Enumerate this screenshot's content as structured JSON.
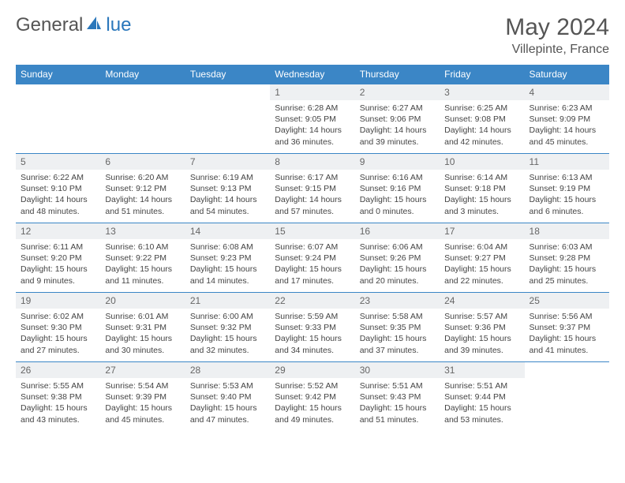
{
  "logo": {
    "part1": "General",
    "part2": "lue"
  },
  "title": "May 2024",
  "location": "Villepinte, France",
  "colors": {
    "header_bg": "#3b86c6",
    "header_text": "#ffffff",
    "border": "#3b86c6",
    "daynum_bg": "#eef0f2",
    "body_text": "#444444",
    "logo_blue": "#2a77bb"
  },
  "weekdays": [
    "Sunday",
    "Monday",
    "Tuesday",
    "Wednesday",
    "Thursday",
    "Friday",
    "Saturday"
  ],
  "weeks": [
    [
      {
        "n": "",
        "sr": "",
        "ss": "",
        "dl": ""
      },
      {
        "n": "",
        "sr": "",
        "ss": "",
        "dl": ""
      },
      {
        "n": "",
        "sr": "",
        "ss": "",
        "dl": ""
      },
      {
        "n": "1",
        "sr": "Sunrise: 6:28 AM",
        "ss": "Sunset: 9:05 PM",
        "dl": "Daylight: 14 hours and 36 minutes."
      },
      {
        "n": "2",
        "sr": "Sunrise: 6:27 AM",
        "ss": "Sunset: 9:06 PM",
        "dl": "Daylight: 14 hours and 39 minutes."
      },
      {
        "n": "3",
        "sr": "Sunrise: 6:25 AM",
        "ss": "Sunset: 9:08 PM",
        "dl": "Daylight: 14 hours and 42 minutes."
      },
      {
        "n": "4",
        "sr": "Sunrise: 6:23 AM",
        "ss": "Sunset: 9:09 PM",
        "dl": "Daylight: 14 hours and 45 minutes."
      }
    ],
    [
      {
        "n": "5",
        "sr": "Sunrise: 6:22 AM",
        "ss": "Sunset: 9:10 PM",
        "dl": "Daylight: 14 hours and 48 minutes."
      },
      {
        "n": "6",
        "sr": "Sunrise: 6:20 AM",
        "ss": "Sunset: 9:12 PM",
        "dl": "Daylight: 14 hours and 51 minutes."
      },
      {
        "n": "7",
        "sr": "Sunrise: 6:19 AM",
        "ss": "Sunset: 9:13 PM",
        "dl": "Daylight: 14 hours and 54 minutes."
      },
      {
        "n": "8",
        "sr": "Sunrise: 6:17 AM",
        "ss": "Sunset: 9:15 PM",
        "dl": "Daylight: 14 hours and 57 minutes."
      },
      {
        "n": "9",
        "sr": "Sunrise: 6:16 AM",
        "ss": "Sunset: 9:16 PM",
        "dl": "Daylight: 15 hours and 0 minutes."
      },
      {
        "n": "10",
        "sr": "Sunrise: 6:14 AM",
        "ss": "Sunset: 9:18 PM",
        "dl": "Daylight: 15 hours and 3 minutes."
      },
      {
        "n": "11",
        "sr": "Sunrise: 6:13 AM",
        "ss": "Sunset: 9:19 PM",
        "dl": "Daylight: 15 hours and 6 minutes."
      }
    ],
    [
      {
        "n": "12",
        "sr": "Sunrise: 6:11 AM",
        "ss": "Sunset: 9:20 PM",
        "dl": "Daylight: 15 hours and 9 minutes."
      },
      {
        "n": "13",
        "sr": "Sunrise: 6:10 AM",
        "ss": "Sunset: 9:22 PM",
        "dl": "Daylight: 15 hours and 11 minutes."
      },
      {
        "n": "14",
        "sr": "Sunrise: 6:08 AM",
        "ss": "Sunset: 9:23 PM",
        "dl": "Daylight: 15 hours and 14 minutes."
      },
      {
        "n": "15",
        "sr": "Sunrise: 6:07 AM",
        "ss": "Sunset: 9:24 PM",
        "dl": "Daylight: 15 hours and 17 minutes."
      },
      {
        "n": "16",
        "sr": "Sunrise: 6:06 AM",
        "ss": "Sunset: 9:26 PM",
        "dl": "Daylight: 15 hours and 20 minutes."
      },
      {
        "n": "17",
        "sr": "Sunrise: 6:04 AM",
        "ss": "Sunset: 9:27 PM",
        "dl": "Daylight: 15 hours and 22 minutes."
      },
      {
        "n": "18",
        "sr": "Sunrise: 6:03 AM",
        "ss": "Sunset: 9:28 PM",
        "dl": "Daylight: 15 hours and 25 minutes."
      }
    ],
    [
      {
        "n": "19",
        "sr": "Sunrise: 6:02 AM",
        "ss": "Sunset: 9:30 PM",
        "dl": "Daylight: 15 hours and 27 minutes."
      },
      {
        "n": "20",
        "sr": "Sunrise: 6:01 AM",
        "ss": "Sunset: 9:31 PM",
        "dl": "Daylight: 15 hours and 30 minutes."
      },
      {
        "n": "21",
        "sr": "Sunrise: 6:00 AM",
        "ss": "Sunset: 9:32 PM",
        "dl": "Daylight: 15 hours and 32 minutes."
      },
      {
        "n": "22",
        "sr": "Sunrise: 5:59 AM",
        "ss": "Sunset: 9:33 PM",
        "dl": "Daylight: 15 hours and 34 minutes."
      },
      {
        "n": "23",
        "sr": "Sunrise: 5:58 AM",
        "ss": "Sunset: 9:35 PM",
        "dl": "Daylight: 15 hours and 37 minutes."
      },
      {
        "n": "24",
        "sr": "Sunrise: 5:57 AM",
        "ss": "Sunset: 9:36 PM",
        "dl": "Daylight: 15 hours and 39 minutes."
      },
      {
        "n": "25",
        "sr": "Sunrise: 5:56 AM",
        "ss": "Sunset: 9:37 PM",
        "dl": "Daylight: 15 hours and 41 minutes."
      }
    ],
    [
      {
        "n": "26",
        "sr": "Sunrise: 5:55 AM",
        "ss": "Sunset: 9:38 PM",
        "dl": "Daylight: 15 hours and 43 minutes."
      },
      {
        "n": "27",
        "sr": "Sunrise: 5:54 AM",
        "ss": "Sunset: 9:39 PM",
        "dl": "Daylight: 15 hours and 45 minutes."
      },
      {
        "n": "28",
        "sr": "Sunrise: 5:53 AM",
        "ss": "Sunset: 9:40 PM",
        "dl": "Daylight: 15 hours and 47 minutes."
      },
      {
        "n": "29",
        "sr": "Sunrise: 5:52 AM",
        "ss": "Sunset: 9:42 PM",
        "dl": "Daylight: 15 hours and 49 minutes."
      },
      {
        "n": "30",
        "sr": "Sunrise: 5:51 AM",
        "ss": "Sunset: 9:43 PM",
        "dl": "Daylight: 15 hours and 51 minutes."
      },
      {
        "n": "31",
        "sr": "Sunrise: 5:51 AM",
        "ss": "Sunset: 9:44 PM",
        "dl": "Daylight: 15 hours and 53 minutes."
      },
      {
        "n": "",
        "sr": "",
        "ss": "",
        "dl": ""
      }
    ]
  ]
}
